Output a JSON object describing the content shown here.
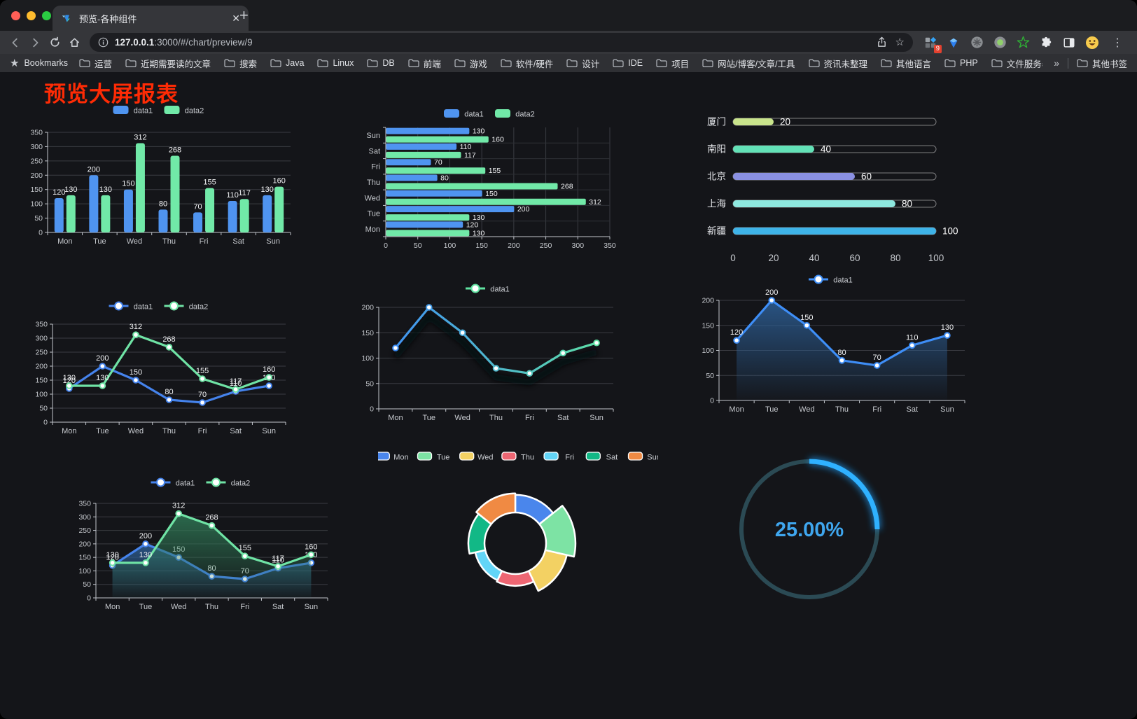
{
  "browser": {
    "tab": {
      "title": "预览-各种组件"
    },
    "url": {
      "host": "127.0.0.1",
      "rest": ":3000/#/chart/preview/9"
    },
    "bookmarks_label": "Bookmarks",
    "bookmark_folders": [
      "运营",
      "近期需要读的文章",
      "搜索",
      "Java",
      "Linux",
      "DB",
      "前端",
      "游戏",
      "软件/硬件",
      "设计",
      "IDE",
      "项目",
      "网站/博客/文章/工具",
      "资讯未整理",
      "其他语言",
      "PHP",
      "文件服务器"
    ],
    "overflow_chevron": "»",
    "other_bookmarks": "其他书签",
    "extension_badge": "9"
  },
  "page": {
    "title": "预览大屏报表",
    "title_color": "#FE2B05"
  },
  "chart_data": [
    {
      "id": "bar-vertical",
      "type": "bar",
      "categories": [
        "Mon",
        "Tue",
        "Wed",
        "Thu",
        "Fri",
        "Sat",
        "Sun"
      ],
      "series": [
        {
          "name": "data1",
          "color": "#4F94F0",
          "values": [
            120,
            200,
            150,
            80,
            70,
            110,
            130
          ]
        },
        {
          "name": "data2",
          "color": "#71E9A8",
          "values": [
            130,
            130,
            312,
            268,
            155,
            117,
            160
          ]
        }
      ],
      "ylim": [
        0,
        350
      ],
      "ytick_step": 50,
      "legend_position": "top",
      "grid": true,
      "labels": true
    },
    {
      "id": "bar-horizontal",
      "type": "bar-horizontal",
      "categories": [
        "Mon",
        "Tue",
        "Wed",
        "Thu",
        "Fri",
        "Sat",
        "Sun"
      ],
      "categories_top_to_bottom": [
        "Sun",
        "Sat",
        "Fri",
        "Thu",
        "Wed",
        "Tue",
        "Mon"
      ],
      "series": [
        {
          "name": "data1",
          "color": "#4F94F0",
          "values": [
            120,
            200,
            150,
            80,
            70,
            110,
            130
          ]
        },
        {
          "name": "data2",
          "color": "#71E9A8",
          "values": [
            130,
            130,
            312,
            268,
            155,
            117,
            160
          ]
        }
      ],
      "xlim": [
        0,
        350
      ],
      "xtick_step": 50,
      "legend_position": "top",
      "grid": true,
      "labels": true
    },
    {
      "id": "progress-bars",
      "type": "progress-bars",
      "max": 100,
      "xticks": [
        0,
        20,
        40,
        60,
        80,
        100
      ],
      "rows": [
        {
          "label": "厦门",
          "value": 20,
          "color": "#C9E48C"
        },
        {
          "label": "南阳",
          "value": 40,
          "color": "#63E2B7"
        },
        {
          "label": "北京",
          "value": 60,
          "color": "#8A90E2"
        },
        {
          "label": "上海",
          "value": 80,
          "color": "#8EE8DF"
        },
        {
          "label": "新疆",
          "value": 100,
          "color": "#3EB3E8"
        }
      ]
    },
    {
      "id": "line-two-series",
      "type": "line",
      "categories": [
        "Mon",
        "Tue",
        "Wed",
        "Thu",
        "Fri",
        "Sat",
        "Sun"
      ],
      "series": [
        {
          "name": "data1",
          "color": "#4583EC",
          "values": [
            120,
            200,
            150,
            80,
            70,
            110,
            130
          ]
        },
        {
          "name": "data2",
          "color": "#6FE3A5",
          "values": [
            130,
            130,
            312,
            268,
            155,
            117,
            160
          ]
        }
      ],
      "ylim": [
        0,
        350
      ],
      "ytick_step": 50,
      "labels": true
    },
    {
      "id": "line-gradient",
      "type": "line-gradient",
      "categories": [
        "Mon",
        "Tue",
        "Wed",
        "Thu",
        "Fri",
        "Sat",
        "Sun"
      ],
      "series": [
        {
          "name": "data1",
          "gradient": [
            "#3E8EF7",
            "#5FE3A1"
          ],
          "values": [
            120,
            200,
            150,
            80,
            70,
            110,
            130
          ]
        }
      ],
      "ylim": [
        0,
        200
      ],
      "ytick_step": 50,
      "labels": false
    },
    {
      "id": "area-single",
      "type": "area",
      "categories": [
        "Mon",
        "Tue",
        "Wed",
        "Thu",
        "Fri",
        "Sat",
        "Sun"
      ],
      "series": [
        {
          "name": "data1",
          "color": "#3E8EF7",
          "fill": "#2D5F96",
          "values": [
            120,
            200,
            150,
            80,
            70,
            110,
            130
          ]
        }
      ],
      "ylim": [
        0,
        200
      ],
      "ytick_step": 50,
      "labels": true
    },
    {
      "id": "area-double",
      "type": "area",
      "categories": [
        "Mon",
        "Tue",
        "Wed",
        "Thu",
        "Fri",
        "Sat",
        "Sun"
      ],
      "series": [
        {
          "name": "data1",
          "color": "#4583EC",
          "fill": "#2D5F96",
          "values": [
            120,
            200,
            150,
            80,
            70,
            110,
            130
          ]
        },
        {
          "name": "data2",
          "color": "#6FE3A5",
          "fill": "#2F7855",
          "values": [
            130,
            130,
            312,
            268,
            155,
            117,
            160
          ]
        }
      ],
      "ylim": [
        0,
        350
      ],
      "ytick_step": 50,
      "labels": true
    },
    {
      "id": "rose-donut",
      "type": "rose",
      "categories": [
        "Mon",
        "Tue",
        "Wed",
        "Thu",
        "Fri",
        "Sat",
        "Sun"
      ],
      "values": [
        120,
        200,
        150,
        80,
        70,
        110,
        130
      ],
      "colors": [
        "#4A86EC",
        "#7DE3A4",
        "#F3D163",
        "#EE6673",
        "#63D5F7",
        "#12B886",
        "#F08A43"
      ]
    },
    {
      "id": "ring-gauge",
      "type": "gauge",
      "value": 25,
      "label": "25.00%",
      "color": "#1FA2FF",
      "track_color": "#2B4A54",
      "text_color": "#3FA6EE"
    }
  ]
}
